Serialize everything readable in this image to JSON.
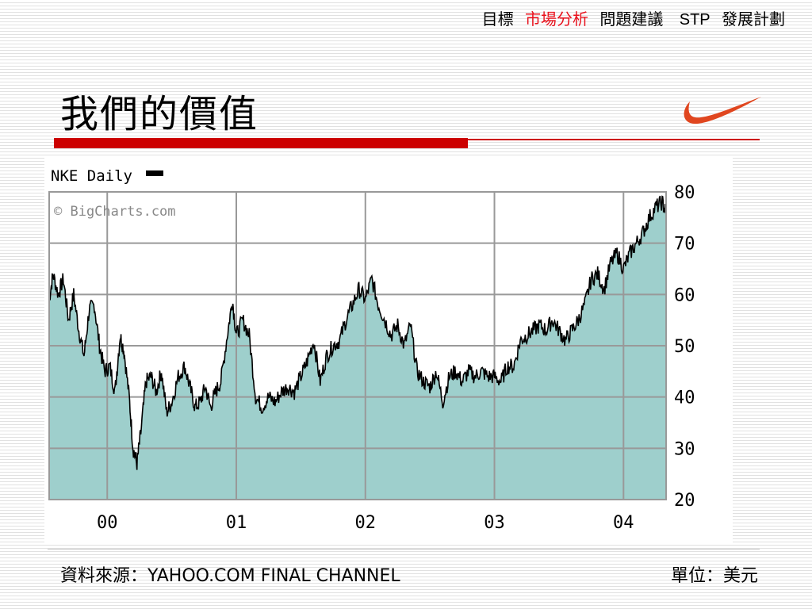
{
  "nav": {
    "items": [
      "目標",
      "市場分析",
      "問題建議",
      "STP",
      "發展計劃"
    ],
    "active_index": 1,
    "active_color": "#e8101b"
  },
  "title": "我們的價值",
  "logo_icon": "nike-swoosh",
  "accent_color": "#cc0000",
  "chart_data": {
    "type": "area",
    "title": "NKE Daily",
    "watermark": "© BigCharts.com",
    "x_tick_labels": [
      "00",
      "01",
      "02",
      "03",
      "04"
    ],
    "y_ticks": [
      80,
      70,
      60,
      50,
      40,
      30,
      20
    ],
    "ylim": [
      20,
      80
    ],
    "fill_color": "#9ecfcc",
    "line_color": "#000000",
    "grid": true,
    "series": [
      {
        "values": [
          [
            1999.55,
            59
          ],
          [
            1999.58,
            64
          ],
          [
            1999.62,
            60
          ],
          [
            1999.66,
            63
          ],
          [
            1999.7,
            55
          ],
          [
            1999.74,
            60
          ],
          [
            1999.78,
            53
          ],
          [
            1999.82,
            48
          ],
          [
            1999.86,
            57
          ],
          [
            1999.9,
            58
          ],
          [
            1999.94,
            50
          ],
          [
            1999.98,
            45
          ],
          [
            2000.02,
            46
          ],
          [
            2000.06,
            41
          ],
          [
            2000.1,
            52
          ],
          [
            2000.13,
            49
          ],
          [
            2000.17,
            40
          ],
          [
            2000.2,
            30
          ],
          [
            2000.23,
            27
          ],
          [
            2000.26,
            33
          ],
          [
            2000.3,
            43
          ],
          [
            2000.34,
            44
          ],
          [
            2000.38,
            41
          ],
          [
            2000.42,
            45
          ],
          [
            2000.46,
            37
          ],
          [
            2000.5,
            39
          ],
          [
            2000.55,
            44
          ],
          [
            2000.6,
            46
          ],
          [
            2000.64,
            42
          ],
          [
            2000.68,
            38
          ],
          [
            2000.72,
            39
          ],
          [
            2000.76,
            42
          ],
          [
            2000.8,
            38
          ],
          [
            2000.84,
            41
          ],
          [
            2000.88,
            43
          ],
          [
            2000.93,
            52
          ],
          [
            2000.97,
            59
          ],
          [
            2001.0,
            52
          ],
          [
            2001.05,
            55
          ],
          [
            2001.1,
            52
          ],
          [
            2001.15,
            40
          ],
          [
            2001.2,
            38
          ],
          [
            2001.25,
            40
          ],
          [
            2001.3,
            39
          ],
          [
            2001.35,
            41
          ],
          [
            2001.4,
            42
          ],
          [
            2001.45,
            41
          ],
          [
            2001.5,
            44
          ],
          [
            2001.55,
            47
          ],
          [
            2001.6,
            51
          ],
          [
            2001.65,
            43
          ],
          [
            2001.7,
            48
          ],
          [
            2001.75,
            50
          ],
          [
            2001.8,
            51
          ],
          [
            2001.85,
            55
          ],
          [
            2001.9,
            58
          ],
          [
            2001.95,
            61
          ],
          [
            2002.0,
            59
          ],
          [
            2002.05,
            63
          ],
          [
            2002.1,
            58
          ],
          [
            2002.15,
            55
          ],
          [
            2002.2,
            52
          ],
          [
            2002.25,
            54
          ],
          [
            2002.3,
            50
          ],
          [
            2002.35,
            54
          ],
          [
            2002.4,
            45
          ],
          [
            2002.45,
            43
          ],
          [
            2002.5,
            42
          ],
          [
            2002.55,
            45
          ],
          [
            2002.6,
            39
          ],
          [
            2002.65,
            44
          ],
          [
            2002.7,
            45
          ],
          [
            2002.75,
            43
          ],
          [
            2002.8,
            45
          ],
          [
            2002.85,
            44
          ],
          [
            2002.9,
            45
          ],
          [
            2002.95,
            44
          ],
          [
            2003.0,
            44
          ],
          [
            2003.05,
            43
          ],
          [
            2003.1,
            46
          ],
          [
            2003.15,
            46
          ],
          [
            2003.2,
            51
          ],
          [
            2003.25,
            52
          ],
          [
            2003.3,
            53
          ],
          [
            2003.35,
            54
          ],
          [
            2003.4,
            53
          ],
          [
            2003.45,
            55
          ],
          [
            2003.5,
            53
          ],
          [
            2003.55,
            51
          ],
          [
            2003.6,
            53
          ],
          [
            2003.65,
            55
          ],
          [
            2003.7,
            58
          ],
          [
            2003.75,
            63
          ],
          [
            2003.8,
            64
          ],
          [
            2003.85,
            61
          ],
          [
            2003.9,
            66
          ],
          [
            2003.95,
            68
          ],
          [
            2004.0,
            65
          ],
          [
            2004.05,
            68
          ],
          [
            2004.1,
            70
          ],
          [
            2004.15,
            72
          ],
          [
            2004.2,
            75
          ],
          [
            2004.25,
            77
          ],
          [
            2004.3,
            78
          ],
          [
            2004.33,
            76
          ]
        ]
      }
    ]
  },
  "footer": {
    "source": "資料來源：YAHOO.COM FINAL CHANNEL",
    "unit": "單位：美元"
  }
}
